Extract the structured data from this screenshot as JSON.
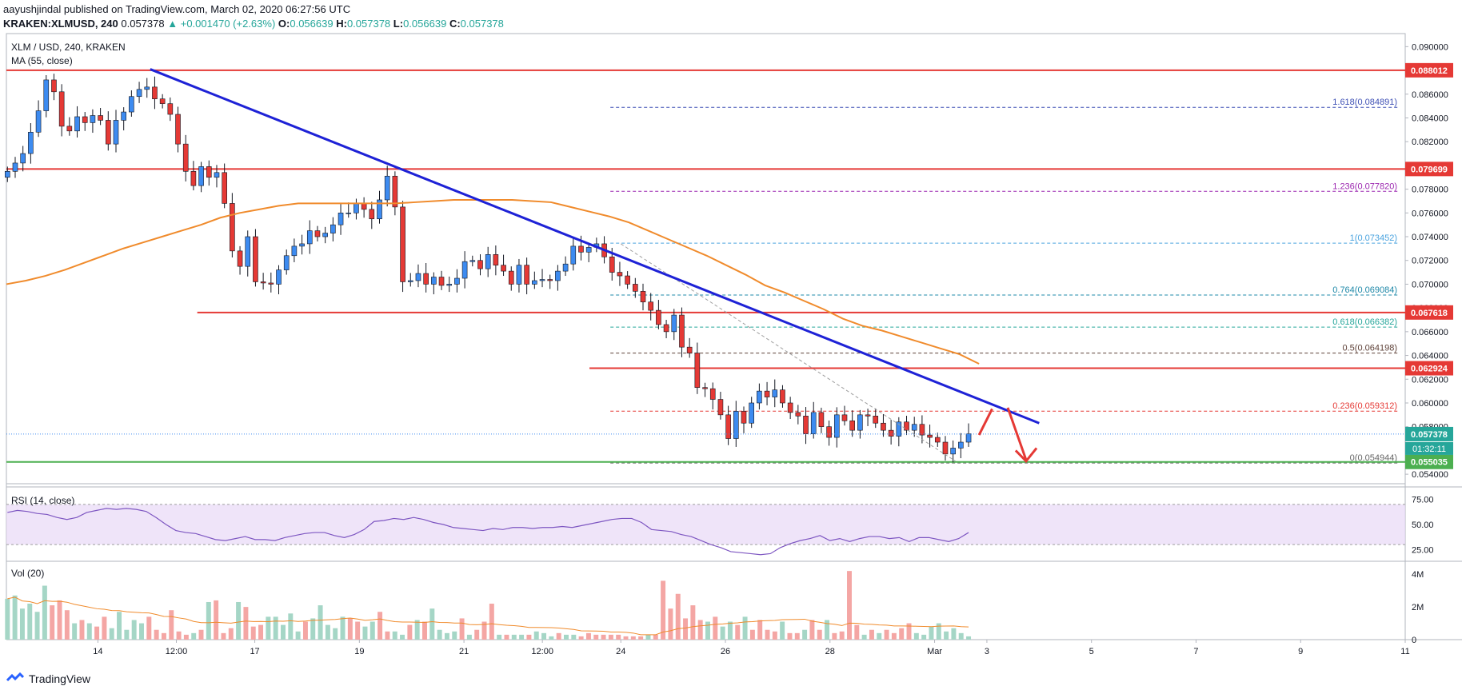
{
  "header": {
    "line1": "aayushjindal published on TradingView.com, March 02, 2020 06:27:56 UTC",
    "symbol": "KRAKEN:XLMUSD, 240",
    "last": "0.057378",
    "change": "+0.001470 (+2.63%)",
    "o_label": "O:",
    "o": "0.056639",
    "h_label": "H:",
    "h": "0.057378",
    "l_label": "L:",
    "l": "0.056639",
    "c_label": "C:",
    "c": "0.057378"
  },
  "pane_labels": {
    "main": "XLM / USD, 240, KRAKEN",
    "ma": "MA (55, close)",
    "rsi": "RSI (14, close)",
    "vol": "Vol (20)"
  },
  "footer": {
    "brand": "TradingView"
  },
  "colors": {
    "bull": "#26a69a",
    "bull_fill": "#5b9cf6",
    "bear": "#ef5350",
    "bear_fill": "#e53935",
    "candle_up_fill": "#3d8bf0",
    "candle_down_fill": "#e53935",
    "trendline": "#1e22d6",
    "ma": "#f08b2c",
    "resistance": "#e53935",
    "support": "#4caf50",
    "rsi": "#7e57c2",
    "rsi_band": "#e8d9f7",
    "vol_up": "#a5d6c6",
    "vol_down": "#f4a6a4"
  },
  "chart_data": {
    "type": "candlestick",
    "title": "XLM / USD, 240, KRAKEN",
    "ylim": [
      0.0532,
      0.0911
    ],
    "y_ticks": [
      "0.090000",
      "0.088000",
      "0.086000",
      "0.084000",
      "0.082000",
      "0.080000",
      "0.078000",
      "0.076000",
      "0.074000",
      "0.072000",
      "0.070000",
      "0.068000",
      "0.066000",
      "0.064000",
      "0.062000",
      "0.060000",
      "0.058000",
      "0.054000"
    ],
    "y_tick_values": [
      0.09,
      0.088,
      0.086,
      0.084,
      0.082,
      0.08,
      0.078,
      0.076,
      0.074,
      0.072,
      0.07,
      0.068,
      0.066,
      0.064,
      0.062,
      0.06,
      0.058,
      0.054
    ],
    "x_ticks": [
      "14",
      "12:00",
      "17",
      "19",
      "21",
      "12:00",
      "24",
      "26",
      "28",
      "Mar",
      "3",
      "5",
      "7",
      "9",
      "11"
    ],
    "x_tick_days": [
      14.0,
      15.5,
      17.0,
      19.0,
      21.0,
      22.5,
      24.0,
      26.0,
      28.0,
      30.0,
      31.0,
      33.0,
      35.0,
      37.0,
      39.0
    ],
    "x_domain_days": [
      12.25,
      39.0
    ],
    "candles_close": [
      0.0795,
      0.0802,
      0.081,
      0.0828,
      0.0846,
      0.0872,
      0.0862,
      0.0833,
      0.0829,
      0.0841,
      0.0836,
      0.0842,
      0.0838,
      0.0818,
      0.0838,
      0.0845,
      0.0858,
      0.0864,
      0.0866,
      0.0856,
      0.0852,
      0.0843,
      0.0818,
      0.0795,
      0.0783,
      0.0799,
      0.079,
      0.0794,
      0.0768,
      0.0728,
      0.0715,
      0.074,
      0.0702,
      0.0701,
      0.07,
      0.0712,
      0.0724,
      0.0732,
      0.0734,
      0.0745,
      0.074,
      0.0743,
      0.075,
      0.076,
      0.076,
      0.0768,
      0.0763,
      0.0755,
      0.0771,
      0.0791,
      0.0765,
      0.0702,
      0.0703,
      0.0709,
      0.07,
      0.0706,
      0.0699,
      0.07,
      0.0705,
      0.0719,
      0.072,
      0.0713,
      0.0725,
      0.0716,
      0.0711,
      0.07,
      0.0716,
      0.07,
      0.0703,
      0.0704,
      0.0703,
      0.0711,
      0.0717,
      0.0732,
      0.0727,
      0.0731,
      0.0734,
      0.0723,
      0.071,
      0.0707,
      0.07,
      0.0694,
      0.0685,
      0.0678,
      0.0666,
      0.066,
      0.0674,
      0.0647,
      0.0642,
      0.0613,
      0.0612,
      0.0603,
      0.059,
      0.057,
      0.0593,
      0.0583,
      0.06,
      0.061,
      0.0605,
      0.0611,
      0.06,
      0.0592,
      0.0589,
      0.0574,
      0.0592,
      0.058,
      0.0571,
      0.059,
      0.0585,
      0.0577,
      0.059,
      0.0589,
      0.0583,
      0.0577,
      0.0572,
      0.0584,
      0.0577,
      0.0582,
      0.0573,
      0.0571,
      0.0567,
      0.0557,
      0.0562,
      0.0567,
      0.0574
    ],
    "ma_55": [
      0.07,
      0.0703,
      0.0707,
      0.0712,
      0.0718,
      0.0724,
      0.073,
      0.0735,
      0.074,
      0.0745,
      0.075,
      0.0756,
      0.076,
      0.0763,
      0.0766,
      0.0768,
      0.0768,
      0.0768,
      0.0768,
      0.0768,
      0.0768,
      0.0769,
      0.077,
      0.0771,
      0.0771,
      0.0771,
      0.0771,
      0.077,
      0.0769,
      0.0765,
      0.0761,
      0.0757,
      0.0752,
      0.0745,
      0.0738,
      0.0731,
      0.0724,
      0.0716,
      0.0708,
      0.0699,
      0.0693,
      0.0686,
      0.0679,
      0.0671,
      0.0665,
      0.0661,
      0.0656,
      0.0651,
      0.0646,
      0.0641,
      0.0633
    ],
    "horizontal_levels": [
      {
        "price": 0.088012,
        "label": "0.088012",
        "kind": "resistance"
      },
      {
        "price": 0.079699,
        "label": "0.079699",
        "kind": "resistance"
      },
      {
        "price": 0.067618,
        "label": "0.067618",
        "kind": "resistance"
      },
      {
        "price": 0.062924,
        "label": "0.062924",
        "kind": "resistance"
      },
      {
        "price": 0.055035,
        "label": "0.055035",
        "kind": "support"
      }
    ],
    "fibonacci": [
      {
        "ratio_label": "1.618(0.084891)",
        "price": 0.084891,
        "color": "#3f51b5"
      },
      {
        "ratio_label": "1.236(0.077820)",
        "price": 0.07782,
        "color": "#9c27b0"
      },
      {
        "ratio_label": "1(0.073452)",
        "price": 0.073452,
        "color": "#4aa3df"
      },
      {
        "ratio_label": "0.764(0.069084)",
        "price": 0.069084,
        "color": "#1e88a8"
      },
      {
        "ratio_label": "0.618(0.066382)",
        "price": 0.066382,
        "color": "#26a69a"
      },
      {
        "ratio_label": "0.5(0.064198)",
        "price": 0.064198,
        "color": "#5d4037"
      },
      {
        "ratio_label": "0.236(0.059312)",
        "price": 0.059312,
        "color": "#e53935"
      },
      {
        "ratio_label": "0(0.054944)",
        "price": 0.054944,
        "color": "#666666"
      }
    ],
    "current_price_label": "0.057378",
    "countdown_label": "01:32:11",
    "rsi_ticks": [
      "75.00",
      "50.00",
      "25.00"
    ],
    "rsi_values": [
      62,
      64,
      63,
      61,
      60,
      57,
      55,
      57,
      62,
      64,
      66,
      65,
      66,
      65,
      63,
      57,
      50,
      44,
      42,
      41,
      38,
      35,
      34,
      36,
      38,
      35,
      35,
      34,
      37,
      39,
      41,
      42,
      42,
      39,
      37,
      40,
      45,
      53,
      54,
      56,
      55,
      57,
      55,
      52,
      50,
      47,
      46,
      45,
      44,
      46,
      45,
      47,
      47,
      46,
      47,
      47,
      48,
      47,
      49,
      51,
      53,
      55,
      56,
      56,
      52,
      45,
      44,
      43,
      40,
      38,
      34,
      30,
      27,
      23,
      22,
      21,
      20,
      21,
      27,
      31,
      34,
      36,
      39,
      34,
      36,
      33,
      36,
      38,
      38,
      36,
      37,
      33,
      37,
      37,
      35,
      33,
      36,
      42
    ],
    "vol_ticks": [
      "4M",
      "2M",
      "0"
    ],
    "vol_values": [
      2.5,
      2.7,
      1.9,
      2.2,
      1.7,
      3.3,
      2.1,
      2.4,
      1.8,
      1.0,
      1.2,
      1.0,
      0.8,
      1.4,
      0.7,
      1.7,
      0.6,
      1.2,
      1.0,
      1.4,
      0.6,
      0.4,
      1.8,
      0.5,
      0.3,
      0.4,
      0.6,
      2.3,
      2.4,
      0.4,
      0.7,
      2.3,
      2.0,
      0.8,
      0.9,
      1.4,
      1.4,
      0.9,
      1.6,
      0.5,
      1.1,
      1.3,
      2.1,
      0.9,
      0.7,
      1.4,
      1.3,
      1.1,
      0.8,
      1.1,
      1.7,
      0.5,
      0.5,
      0.3,
      0.9,
      1.2,
      1.1,
      1.9,
      0.6,
      0.4,
      0.5,
      1.3,
      0.3,
      0.6,
      1.1,
      2.2,
      0.3,
      0.3,
      0.3,
      0.3,
      0.3,
      0.5,
      0.4,
      0.2,
      0.4,
      0.3,
      0.3,
      0.2,
      0.4,
      0.3,
      0.3,
      0.3,
      0.3,
      0.2,
      0.2,
      0.2,
      0.3,
      0.3,
      3.6,
      1.9,
      2.8,
      1.3,
      2.1,
      1.2,
      1.1,
      1.4,
      0.8,
      1.1,
      0.9,
      1.4,
      0.6,
      1.2,
      0.6,
      0.5,
      1.1,
      0.4,
      0.4,
      0.6,
      1.2,
      0.6,
      1.2,
      0.4,
      0.5,
      4.2,
      0.9,
      0.3,
      0.6,
      0.4,
      0.6,
      0.4,
      0.7,
      1.0,
      0.4,
      0.3,
      0.8,
      1.0,
      0.5,
      0.7,
      0.4,
      0.2
    ]
  }
}
